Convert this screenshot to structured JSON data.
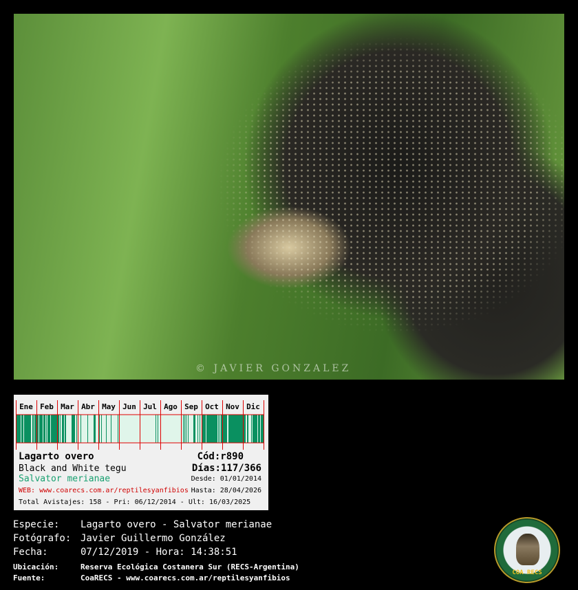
{
  "photo": {
    "watermark": "© JAVIER GONZALEZ"
  },
  "card": {
    "months": [
      "Ene",
      "Feb",
      "Mar",
      "Abr",
      "May",
      "Jun",
      "Jul",
      "Ago",
      "Sep",
      "Oct",
      "Nov",
      "Dic"
    ],
    "month_activity": [
      0.7,
      0.75,
      0.45,
      0.12,
      0.08,
      0,
      0.04,
      0,
      0.3,
      0.85,
      0.75,
      0.7
    ],
    "colors": {
      "bar": "#0a9060",
      "bar_light": "#e0f5ea",
      "grid": "#e00000"
    },
    "common_name": "Lagarto overo",
    "english_name": "Black and White tegu",
    "scientific_name": "Salvator merianae",
    "web": "WEB: www.coarecs.com.ar/reptilesyanfibios",
    "code": "Cód:r890",
    "days": "Días:117/366",
    "from": "Desde: 01/01/2014",
    "to": "Hasta: 28/04/2026",
    "totals": "Total Avistajes: 158 - Pri: 06/12/2014 - Ult: 16/03/2025"
  },
  "info": {
    "species_label": "Especie:",
    "species": "Lagarto overo - Salvator merianae",
    "photographer_label": "Fotógrafo:",
    "photographer": "Javier Guillermo González",
    "date_label": "Fecha:",
    "date": "07/12/2019 - Hora: 14:38:51",
    "location_label": "Ubicación:",
    "location": "Reserva Ecológica Costanera Sur (RECS-Argentina)",
    "source_label": "Fuente:",
    "source": "CoaRECS - www.coarecs.com.ar/reptilesyanfibios"
  },
  "logo": {
    "text": "COA RECS"
  }
}
